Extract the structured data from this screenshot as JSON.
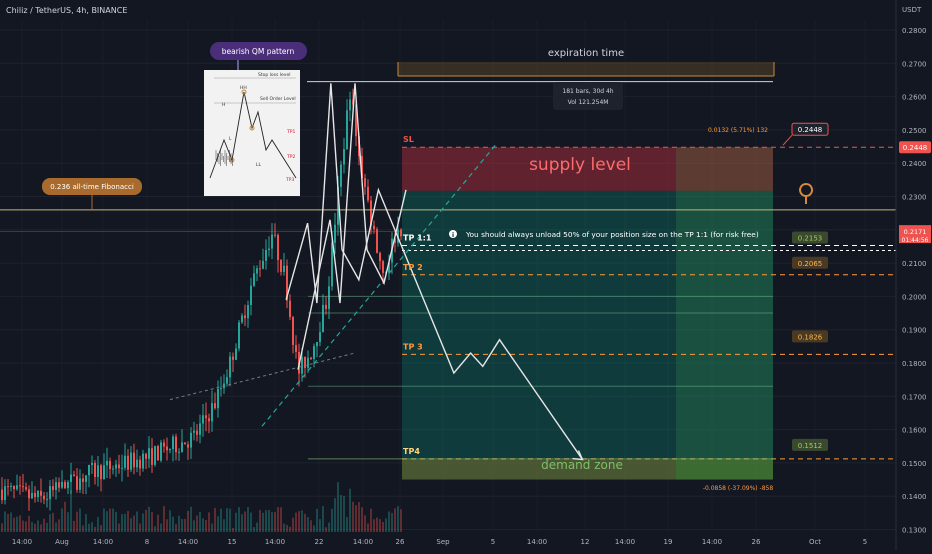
{
  "header": {
    "symbol": "Chiliz / TetherUS, 4h, BINANCE",
    "currency": "USDT"
  },
  "chart_data": {
    "type": "candlestick",
    "yaxis": {
      "range": [
        0.13,
        0.29
      ],
      "ticks": [
        "0.2800",
        "0.2700",
        "0.2600",
        "0.2500",
        "0.2400",
        "0.2300",
        "0.2200",
        "0.2100",
        "0.2000",
        "0.1900",
        "0.1800",
        "0.1700",
        "0.1600",
        "0.1500",
        "0.1400",
        "0.1300"
      ]
    },
    "xaxis": {
      "ticks": [
        "14:00",
        "Aug",
        "14:00",
        "8",
        "14:00",
        "15",
        "14:00",
        "22",
        "14:00",
        "26",
        "Sep",
        "5",
        "14:00",
        "12",
        "14:00",
        "19",
        "14:00",
        "26",
        "Oct",
        "5"
      ]
    },
    "current_price": "0.2171",
    "countdown": "01:44:56",
    "price_labels": [
      {
        "value": 0.2448,
        "text": "0.2448",
        "style": "highlight"
      },
      {
        "value": 0.2448,
        "text": "0.2448",
        "style": "axis-red"
      },
      {
        "value": 0.2153,
        "text": "0.2153",
        "style": "green"
      },
      {
        "value": 0.2065,
        "text": "0.2065",
        "style": "orange"
      },
      {
        "value": 0.1826,
        "text": "0.1826",
        "style": "orange"
      },
      {
        "value": 0.1512,
        "text": "0.1512",
        "style": "green"
      }
    ],
    "levels": [
      {
        "name": "SL",
        "value": 0.2448
      },
      {
        "name": "TP 1:1",
        "value": 0.2153
      },
      {
        "name": "TP 2",
        "value": 0.2065
      },
      {
        "name": "TP 3",
        "value": 0.1826
      },
      {
        "name": "TP4",
        "value": 0.1512
      }
    ],
    "annotations": {
      "pattern_label": "bearish QM pattern",
      "fib_label": "0.236 all-time Fibonacci",
      "fib_value": 0.226,
      "expiration": "expiration time",
      "bars_info_1": "181 bars, 30d 4h",
      "bars_info_2": "Vol 121.254M",
      "risk_text": "0.0132 (5.71%) 132",
      "reward_text": "-0.0858 (-37.09%) -858",
      "supply": "supply level",
      "demand": "demand zone",
      "note": "You should always unload 50% of your position size on the TP 1:1 (for risk free)"
    },
    "inset_labels": {
      "stop": "Stop loss level",
      "order": "Sell Order Level",
      "hh": "HH",
      "h": "H",
      "l": "L",
      "ll": "LL",
      "tp1": "TP1",
      "tp2": "TP2",
      "tp3": "TP3"
    },
    "path_points": [
      [
        0.307,
        0.199
      ],
      [
        0.33,
        0.222
      ],
      [
        0.34,
        0.198
      ],
      [
        0.355,
        0.264
      ],
      [
        0.367,
        0.214
      ],
      [
        0.385,
        0.205
      ],
      [
        0.406,
        0.232
      ],
      [
        0.487,
        0.177
      ],
      [
        0.505,
        0.183
      ],
      [
        0.518,
        0.179
      ],
      [
        0.536,
        0.187
      ],
      [
        0.625,
        0.151
      ]
    ]
  }
}
